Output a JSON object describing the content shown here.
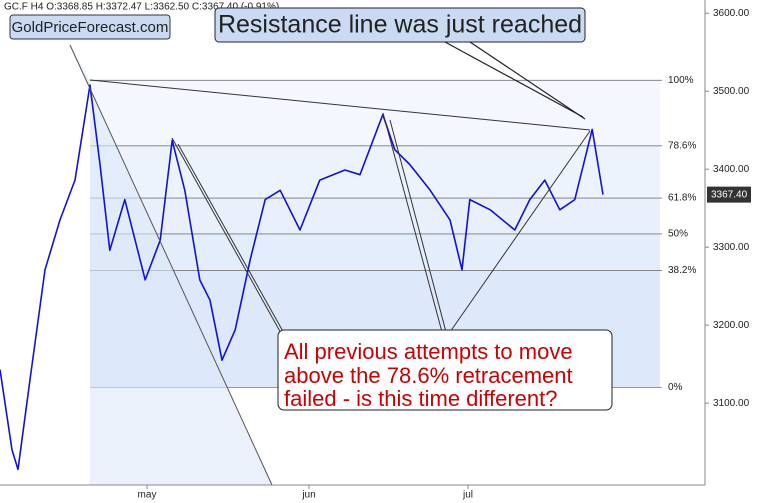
{
  "chart_data": {
    "type": "line",
    "header": "GC.F  H4  O:3368.85  H:3372.47  L:3362.50  C:3367.40  (-0.91%)",
    "watermark": "GoldPriceForecast.com",
    "annotations": [
      "Resistance line was just reached",
      [
        "All previous attempts to move",
        "above the 78.6% retracement",
        "failed - is this time different?"
      ]
    ],
    "last_price": {
      "value": 3367.4,
      "label": "3367.40"
    },
    "color": "#1010e0",
    "x": [
      0,
      2,
      3,
      5,
      7.5,
      10,
      12.5,
      15,
      16.7,
      18.3,
      20.8,
      24.2,
      26.7,
      28.7,
      30.8,
      33.3,
      35,
      37,
      39.2,
      41.7,
      44.2,
      46.7,
      50,
      53.3,
      57.5,
      60,
      63.8,
      65.8,
      68.3,
      71.7,
      75,
      77,
      78.3,
      81.7,
      85.8,
      88.3,
      90.8,
      93.3,
      95.8,
      98.7,
      100.5
    ],
    "values": [
      3143,
      3040,
      3015,
      3130,
      3271,
      3335,
      3386,
      3508,
      3404,
      3296,
      3361,
      3258,
      3309,
      3437,
      3373,
      3258,
      3232,
      3155,
      3194,
      3284,
      3361,
      3373,
      3322,
      3386,
      3399,
      3393,
      3470,
      3425,
      3406,
      3373,
      3335,
      3271,
      3361,
      3348,
      3322,
      3361,
      3386,
      3348,
      3361,
      3451,
      3367.4
    ],
    "fib_levels": [
      {
        "value": 3514,
        "label": "100%"
      },
      {
        "value": 3430,
        "label": "78.6%"
      },
      {
        "value": 3363,
        "label": "61.8%"
      },
      {
        "value": 3317,
        "label": "50%"
      },
      {
        "value": 3270,
        "label": "38.2%"
      },
      {
        "value": 3120,
        "label": "0%"
      }
    ],
    "xlim": [
      0,
      117.5
    ],
    "xticks": [
      {
        "value": 24.5,
        "label": "may"
      },
      {
        "value": 51.5,
        "label": "jun"
      },
      {
        "value": 78,
        "label": "jul"
      }
    ],
    "ylim": [
      2995,
      3617
    ],
    "yticks": [
      {
        "value": 3100,
        "label": "3100.00"
      },
      {
        "value": 3200,
        "label": "3200.00"
      },
      {
        "value": 3300,
        "label": "3300.00"
      },
      {
        "value": 3400,
        "label": "3400.00"
      },
      {
        "value": 3500,
        "label": "3500.00"
      },
      {
        "value": 3600,
        "label": "3600.00"
      }
    ]
  }
}
